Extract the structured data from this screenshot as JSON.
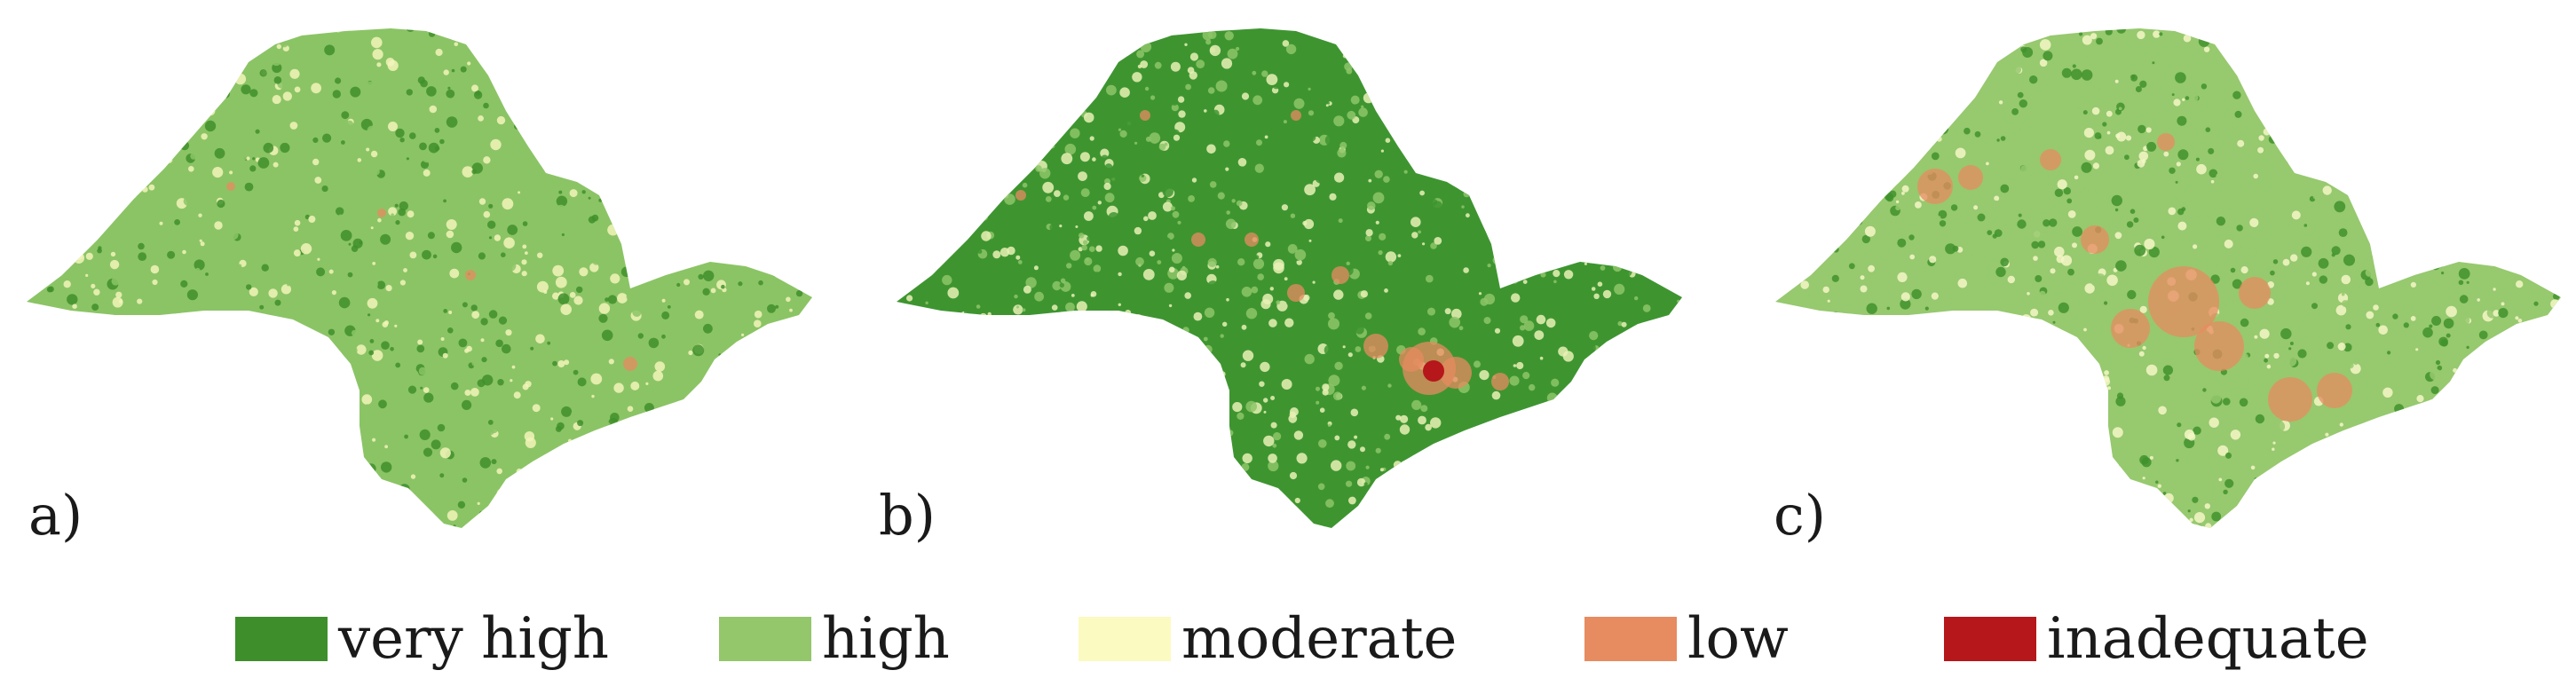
{
  "panels": [
    {
      "label": "a)",
      "dominant": "#8bc465",
      "secondary": "#3f8f2c",
      "tertiary": "#f2f4b8"
    },
    {
      "label": "b)",
      "dominant": "#3e9530",
      "secondary": "#8dc668",
      "tertiary": "#e9f1b5"
    },
    {
      "label": "c)",
      "dominant": "#97c96f",
      "secondary": "#3f922d",
      "tertiary": "#f5f7c6"
    }
  ],
  "legend": {
    "items": [
      {
        "label": "very high",
        "color": "#3e8e2b"
      },
      {
        "label": "high",
        "color": "#94c76c"
      },
      {
        "label": "moderate",
        "color": "#fbfac0"
      },
      {
        "label": "low",
        "color": "#e78b60"
      },
      {
        "label": "inadequate",
        "color": "#b5171a"
      }
    ]
  }
}
